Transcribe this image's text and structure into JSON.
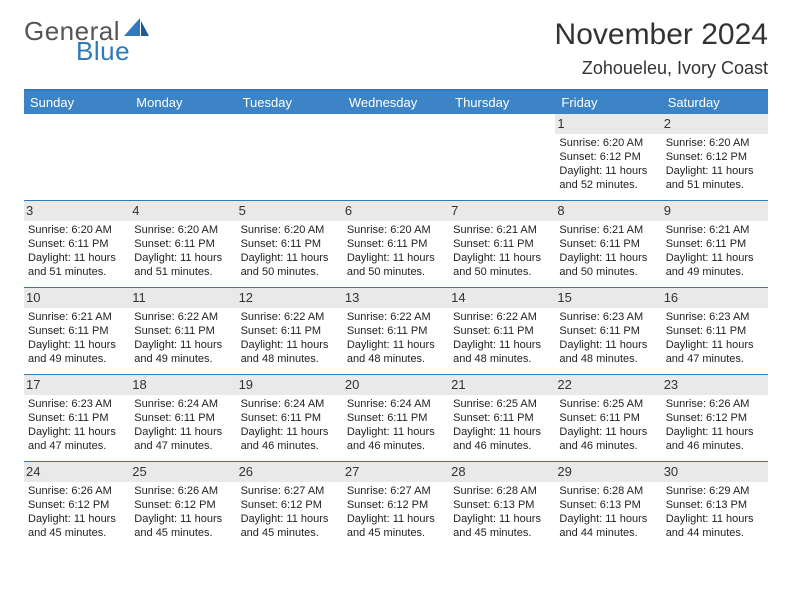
{
  "brand": {
    "word1": "General",
    "word2": "Blue",
    "accent_color": "#2f79bd"
  },
  "title": "November 2024",
  "subtitle": "Zohoueleu, Ivory Coast",
  "colors": {
    "header_bg": "#3c84c6",
    "header_text": "#ffffff",
    "rule": "#2f79bd",
    "shade": "#e9e9e9",
    "text": "#222222",
    "page_bg": "#ffffff"
  },
  "day_headers": [
    "Sunday",
    "Monday",
    "Tuesday",
    "Wednesday",
    "Thursday",
    "Friday",
    "Saturday"
  ],
  "weeks": [
    [
      null,
      null,
      null,
      null,
      null,
      {
        "n": "1",
        "sunrise": "Sunrise: 6:20 AM",
        "sunset": "Sunset: 6:12 PM",
        "day1": "Daylight: 11 hours",
        "day2": "and 52 minutes."
      },
      {
        "n": "2",
        "sunrise": "Sunrise: 6:20 AM",
        "sunset": "Sunset: 6:12 PM",
        "day1": "Daylight: 11 hours",
        "day2": "and 51 minutes."
      }
    ],
    [
      {
        "n": "3",
        "sunrise": "Sunrise: 6:20 AM",
        "sunset": "Sunset: 6:11 PM",
        "day1": "Daylight: 11 hours",
        "day2": "and 51 minutes."
      },
      {
        "n": "4",
        "sunrise": "Sunrise: 6:20 AM",
        "sunset": "Sunset: 6:11 PM",
        "day1": "Daylight: 11 hours",
        "day2": "and 51 minutes."
      },
      {
        "n": "5",
        "sunrise": "Sunrise: 6:20 AM",
        "sunset": "Sunset: 6:11 PM",
        "day1": "Daylight: 11 hours",
        "day2": "and 50 minutes."
      },
      {
        "n": "6",
        "sunrise": "Sunrise: 6:20 AM",
        "sunset": "Sunset: 6:11 PM",
        "day1": "Daylight: 11 hours",
        "day2": "and 50 minutes."
      },
      {
        "n": "7",
        "sunrise": "Sunrise: 6:21 AM",
        "sunset": "Sunset: 6:11 PM",
        "day1": "Daylight: 11 hours",
        "day2": "and 50 minutes."
      },
      {
        "n": "8",
        "sunrise": "Sunrise: 6:21 AM",
        "sunset": "Sunset: 6:11 PM",
        "day1": "Daylight: 11 hours",
        "day2": "and 50 minutes."
      },
      {
        "n": "9",
        "sunrise": "Sunrise: 6:21 AM",
        "sunset": "Sunset: 6:11 PM",
        "day1": "Daylight: 11 hours",
        "day2": "and 49 minutes."
      }
    ],
    [
      {
        "n": "10",
        "sunrise": "Sunrise: 6:21 AM",
        "sunset": "Sunset: 6:11 PM",
        "day1": "Daylight: 11 hours",
        "day2": "and 49 minutes."
      },
      {
        "n": "11",
        "sunrise": "Sunrise: 6:22 AM",
        "sunset": "Sunset: 6:11 PM",
        "day1": "Daylight: 11 hours",
        "day2": "and 49 minutes."
      },
      {
        "n": "12",
        "sunrise": "Sunrise: 6:22 AM",
        "sunset": "Sunset: 6:11 PM",
        "day1": "Daylight: 11 hours",
        "day2": "and 48 minutes."
      },
      {
        "n": "13",
        "sunrise": "Sunrise: 6:22 AM",
        "sunset": "Sunset: 6:11 PM",
        "day1": "Daylight: 11 hours",
        "day2": "and 48 minutes."
      },
      {
        "n": "14",
        "sunrise": "Sunrise: 6:22 AM",
        "sunset": "Sunset: 6:11 PM",
        "day1": "Daylight: 11 hours",
        "day2": "and 48 minutes."
      },
      {
        "n": "15",
        "sunrise": "Sunrise: 6:23 AM",
        "sunset": "Sunset: 6:11 PM",
        "day1": "Daylight: 11 hours",
        "day2": "and 48 minutes."
      },
      {
        "n": "16",
        "sunrise": "Sunrise: 6:23 AM",
        "sunset": "Sunset: 6:11 PM",
        "day1": "Daylight: 11 hours",
        "day2": "and 47 minutes."
      }
    ],
    [
      {
        "n": "17",
        "sunrise": "Sunrise: 6:23 AM",
        "sunset": "Sunset: 6:11 PM",
        "day1": "Daylight: 11 hours",
        "day2": "and 47 minutes."
      },
      {
        "n": "18",
        "sunrise": "Sunrise: 6:24 AM",
        "sunset": "Sunset: 6:11 PM",
        "day1": "Daylight: 11 hours",
        "day2": "and 47 minutes."
      },
      {
        "n": "19",
        "sunrise": "Sunrise: 6:24 AM",
        "sunset": "Sunset: 6:11 PM",
        "day1": "Daylight: 11 hours",
        "day2": "and 46 minutes."
      },
      {
        "n": "20",
        "sunrise": "Sunrise: 6:24 AM",
        "sunset": "Sunset: 6:11 PM",
        "day1": "Daylight: 11 hours",
        "day2": "and 46 minutes."
      },
      {
        "n": "21",
        "sunrise": "Sunrise: 6:25 AM",
        "sunset": "Sunset: 6:11 PM",
        "day1": "Daylight: 11 hours",
        "day2": "and 46 minutes."
      },
      {
        "n": "22",
        "sunrise": "Sunrise: 6:25 AM",
        "sunset": "Sunset: 6:11 PM",
        "day1": "Daylight: 11 hours",
        "day2": "and 46 minutes."
      },
      {
        "n": "23",
        "sunrise": "Sunrise: 6:26 AM",
        "sunset": "Sunset: 6:12 PM",
        "day1": "Daylight: 11 hours",
        "day2": "and 46 minutes."
      }
    ],
    [
      {
        "n": "24",
        "sunrise": "Sunrise: 6:26 AM",
        "sunset": "Sunset: 6:12 PM",
        "day1": "Daylight: 11 hours",
        "day2": "and 45 minutes."
      },
      {
        "n": "25",
        "sunrise": "Sunrise: 6:26 AM",
        "sunset": "Sunset: 6:12 PM",
        "day1": "Daylight: 11 hours",
        "day2": "and 45 minutes."
      },
      {
        "n": "26",
        "sunrise": "Sunrise: 6:27 AM",
        "sunset": "Sunset: 6:12 PM",
        "day1": "Daylight: 11 hours",
        "day2": "and 45 minutes."
      },
      {
        "n": "27",
        "sunrise": "Sunrise: 6:27 AM",
        "sunset": "Sunset: 6:12 PM",
        "day1": "Daylight: 11 hours",
        "day2": "and 45 minutes."
      },
      {
        "n": "28",
        "sunrise": "Sunrise: 6:28 AM",
        "sunset": "Sunset: 6:13 PM",
        "day1": "Daylight: 11 hours",
        "day2": "and 45 minutes."
      },
      {
        "n": "29",
        "sunrise": "Sunrise: 6:28 AM",
        "sunset": "Sunset: 6:13 PM",
        "day1": "Daylight: 11 hours",
        "day2": "and 44 minutes."
      },
      {
        "n": "30",
        "sunrise": "Sunrise: 6:29 AM",
        "sunset": "Sunset: 6:13 PM",
        "day1": "Daylight: 11 hours",
        "day2": "and 44 minutes."
      }
    ]
  ]
}
